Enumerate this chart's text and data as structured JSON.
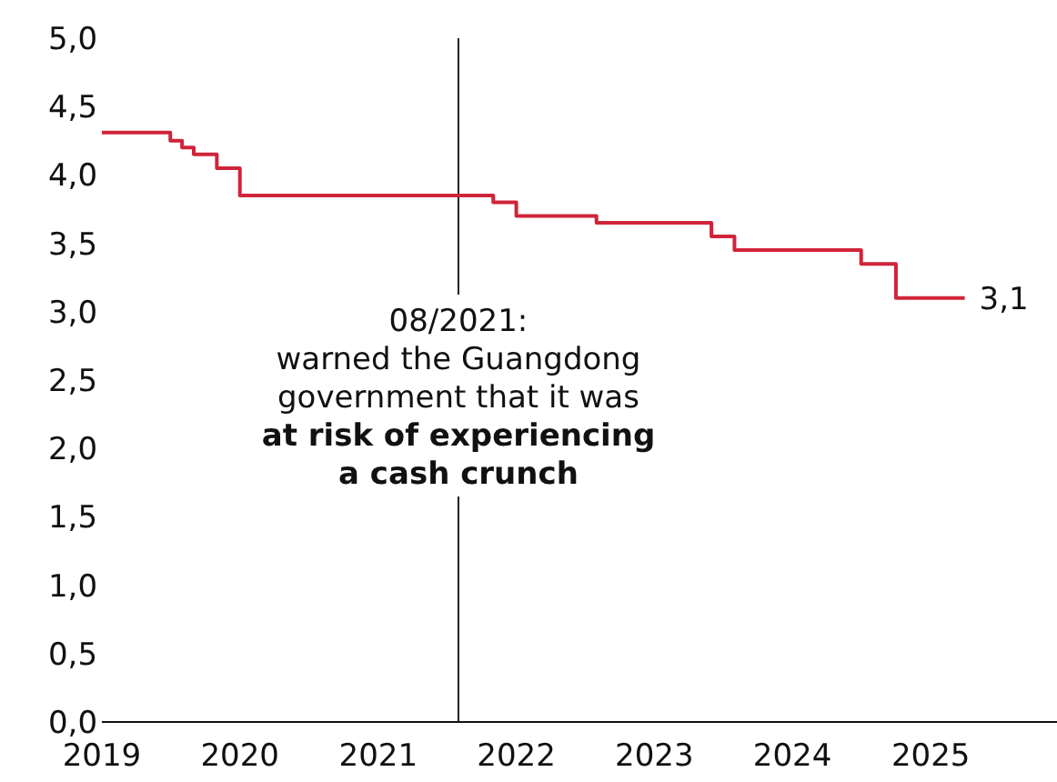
{
  "chart_data": {
    "type": "step",
    "x": [
      "2019-01",
      "2019-07",
      "2019-08",
      "2019-09",
      "2019-11",
      "2020-01",
      "2020-04",
      "2021-11",
      "2022-01",
      "2022-08",
      "2023-06",
      "2023-08",
      "2024-07",
      "2024-10",
      "2025-04"
    ],
    "series": [
      {
        "color": "#d0243a",
        "values": [
          4.31,
          4.25,
          4.2,
          4.15,
          4.05,
          3.85,
          3.85,
          3.8,
          3.7,
          3.65,
          3.55,
          3.45,
          3.35,
          3.1,
          3.1
        ],
        "value_labels": [
          null,
          null,
          null,
          null,
          null,
          null,
          null,
          null,
          null,
          null,
          null,
          null,
          null,
          null,
          "3,1"
        ]
      }
    ],
    "xlim": [
      "2019-01",
      "2025-12"
    ],
    "xticks": [
      {
        "value": "2019",
        "label": "2019"
      },
      {
        "value": "2020",
        "label": "2020"
      },
      {
        "value": "2021",
        "label": "2021"
      },
      {
        "value": "2022",
        "label": "2022"
      },
      {
        "value": "2023",
        "label": "2023"
      },
      {
        "value": "2024",
        "label": "2024"
      },
      {
        "value": "2025",
        "label": "2025"
      }
    ],
    "ylim": [
      0,
      5
    ],
    "yticks": [
      {
        "value": 0,
        "label": "0,0"
      },
      {
        "value": 0.5,
        "label": "0,5"
      },
      {
        "value": 1,
        "label": "1,0"
      },
      {
        "value": 1.5,
        "label": "1,5"
      },
      {
        "value": 2,
        "label": "2,0"
      },
      {
        "value": 2.5,
        "label": "2,5"
      },
      {
        "value": 3,
        "label": "3,0"
      },
      {
        "value": 3.5,
        "label": "3,5"
      },
      {
        "value": 4,
        "label": "4,0"
      },
      {
        "value": 4.5,
        "label": "4,5"
      },
      {
        "value": 5,
        "label": "5,0"
      }
    ],
    "grid": false,
    "marker": "none",
    "line_style": "solid",
    "ref_lines": [
      {
        "axis": "x",
        "value": "2021-08",
        "label": "08/2021:",
        "color": "#222222"
      }
    ],
    "annotations": [
      "warned the Guangdong government that it was",
      "at risk of experiencing a cash crunch"
    ]
  }
}
